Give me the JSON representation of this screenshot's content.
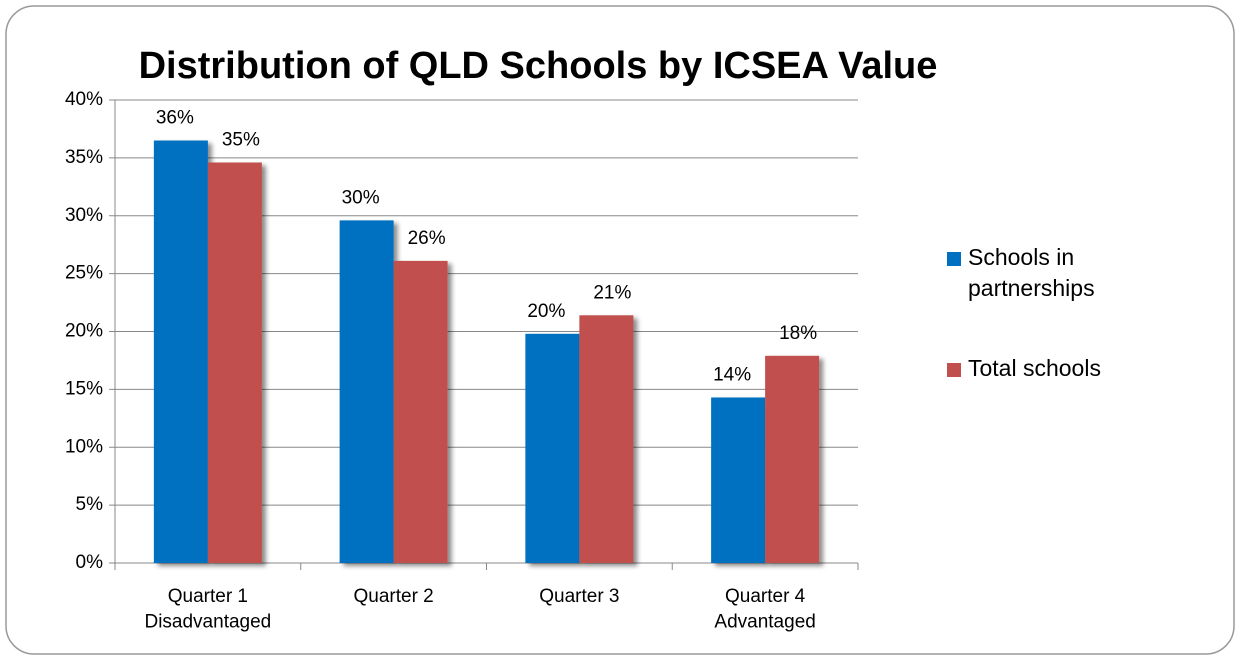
{
  "chart_data": {
    "type": "bar",
    "title": "Distribution of QLD Schools by ICSEA Value",
    "categories": [
      "Quarter 1\nDisadvantaged",
      "Quarter 2",
      "Quarter 3",
      "Quarter 4\nAdvantaged"
    ],
    "series": [
      {
        "name": "Schools in partnerships",
        "color": "#0070c0",
        "values": [
          36.5,
          29.6,
          19.8,
          14.3
        ],
        "value_labels": [
          "36%",
          "30%",
          "20%",
          "14%"
        ]
      },
      {
        "name": "Total schools",
        "color": "#c0504d",
        "values": [
          34.6,
          26.1,
          21.4,
          17.9
        ],
        "value_labels": [
          "35%",
          "26%",
          "21%",
          "18%"
        ]
      }
    ],
    "ylim": [
      0,
      40
    ],
    "yticks": [
      {
        "value": 0,
        "label": "0%"
      },
      {
        "value": 5,
        "label": "5%"
      },
      {
        "value": 10,
        "label": "10%"
      },
      {
        "value": 15,
        "label": "15%"
      },
      {
        "value": 20,
        "label": "20%"
      },
      {
        "value": 25,
        "label": "25%"
      },
      {
        "value": 30,
        "label": "30%"
      },
      {
        "value": 35,
        "label": "35%"
      },
      {
        "value": 40,
        "label": "40%"
      }
    ],
    "grid": true,
    "legend": "right"
  }
}
